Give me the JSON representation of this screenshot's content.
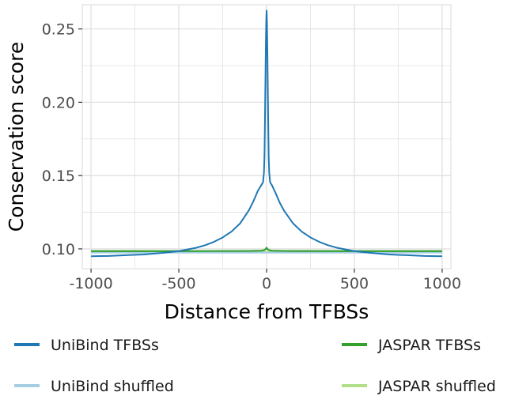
{
  "chart_data": {
    "type": "line",
    "title": "",
    "xlabel": "Distance from TFBSs",
    "ylabel": "Conservation score",
    "xlim": [
      -1050,
      1050
    ],
    "ylim": [
      0.0865,
      0.2665
    ],
    "x_ticks": [
      -1000,
      -500,
      0,
      500,
      1000
    ],
    "x_tick_labels": [
      "-1000",
      "-500",
      "0",
      "500",
      "1000"
    ],
    "y_ticks": [
      0.1,
      0.15,
      0.2,
      0.25
    ],
    "y_tick_labels": [
      "0.10",
      "0.15",
      "0.20",
      "0.25"
    ],
    "grid": true,
    "legend_position": "bottom",
    "series": [
      {
        "name": "UniBind TFBSs",
        "color": "#1f78b4",
        "x": [
          -1000,
          -900,
          -800,
          -700,
          -600,
          -500,
          -400,
          -350,
          -300,
          -250,
          -200,
          -150,
          -100,
          -75,
          -50,
          -30,
          -20,
          -15,
          -12,
          -10,
          -8,
          -6,
          -4,
          -2,
          0,
          2,
          4,
          6,
          8,
          10,
          12,
          15,
          20,
          30,
          50,
          75,
          100,
          150,
          200,
          250,
          300,
          350,
          400,
          500,
          600,
          700,
          800,
          900,
          1000
        ],
        "y": [
          0.095,
          0.0952,
          0.0957,
          0.0962,
          0.0972,
          0.0985,
          0.1008,
          0.1025,
          0.1048,
          0.1078,
          0.1118,
          0.1175,
          0.1265,
          0.1325,
          0.1395,
          0.1435,
          0.1455,
          0.152,
          0.163,
          0.18,
          0.2,
          0.22,
          0.24,
          0.255,
          0.2625,
          0.255,
          0.24,
          0.22,
          0.2,
          0.18,
          0.163,
          0.152,
          0.1455,
          0.1435,
          0.1385,
          0.1315,
          0.126,
          0.1175,
          0.1118,
          0.1078,
          0.1048,
          0.1025,
          0.1008,
          0.0985,
          0.0972,
          0.0962,
          0.0957,
          0.0952,
          0.095
        ]
      },
      {
        "name": "UniBind shuffled",
        "color": "#a6cee3",
        "x": [
          -1000,
          -500,
          0,
          500,
          1000
        ],
        "y": [
          0.0975,
          0.0975,
          0.0975,
          0.0975,
          0.0975
        ]
      },
      {
        "name": "JASPAR TFBSs",
        "color": "#33a02c",
        "x": [
          -1000,
          -500,
          -100,
          -30,
          -12,
          -6,
          -3,
          0,
          3,
          6,
          12,
          30,
          100,
          500,
          1000
        ],
        "y": [
          0.0985,
          0.0985,
          0.0986,
          0.0988,
          0.0992,
          0.0998,
          0.1003,
          0.1008,
          0.1003,
          0.0998,
          0.0992,
          0.0988,
          0.0986,
          0.0985,
          0.0985
        ]
      },
      {
        "name": "JASPAR shuffled",
        "color": "#b2df8a",
        "x": [
          -1000,
          -500,
          0,
          500,
          1000
        ],
        "y": [
          0.0978,
          0.0978,
          0.0978,
          0.0978,
          0.0978
        ]
      }
    ]
  }
}
